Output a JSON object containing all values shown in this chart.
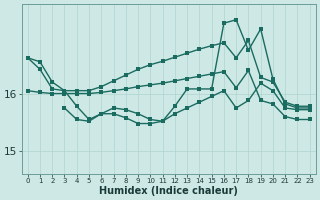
{
  "xlabel": "Humidex (Indice chaleur)",
  "background_color": "#cde8e5",
  "line_color": "#1a6b60",
  "grid_color": "#afd4d0",
  "xlim": [
    -0.5,
    23.5
  ],
  "ylim": [
    14.6,
    17.55
  ],
  "yticks": [
    15,
    16
  ],
  "xticks": [
    0,
    1,
    2,
    3,
    4,
    5,
    6,
    7,
    8,
    9,
    10,
    11,
    12,
    13,
    14,
    15,
    16,
    17,
    18,
    19,
    20,
    21,
    22,
    23
  ],
  "line_upper_smooth_x": [
    0,
    1,
    2,
    3,
    4,
    5,
    6,
    7,
    8,
    9,
    10,
    11,
    12,
    13,
    14,
    15,
    16,
    17,
    18,
    19,
    20,
    21,
    22,
    23
  ],
  "line_upper_smooth_y": [
    16.62,
    16.55,
    16.2,
    16.05,
    16.05,
    16.05,
    16.12,
    16.22,
    16.32,
    16.42,
    16.5,
    16.56,
    16.63,
    16.7,
    16.77,
    16.83,
    16.88,
    16.62,
    16.92,
    16.28,
    16.2,
    15.85,
    15.78,
    15.78
  ],
  "line_lower_smooth_x": [
    0,
    1,
    2,
    3,
    4,
    5,
    6,
    7,
    8,
    9,
    10,
    11,
    12,
    13,
    14,
    15,
    16,
    17,
    18,
    19,
    20,
    21,
    22,
    23
  ],
  "line_lower_smooth_y": [
    16.05,
    16.02,
    16.0,
    16.0,
    16.0,
    16.0,
    16.02,
    16.05,
    16.08,
    16.12,
    16.15,
    16.18,
    16.22,
    16.26,
    16.3,
    16.34,
    16.38,
    16.1,
    16.4,
    15.88,
    15.82,
    15.6,
    15.55,
    15.55
  ],
  "line_upper_jagged_x": [
    0,
    1,
    2,
    3,
    4,
    5,
    6,
    7,
    8,
    9,
    10,
    11,
    12,
    13,
    14,
    15,
    16,
    17,
    18,
    19,
    20,
    21,
    22,
    23
  ],
  "line_upper_jagged_y": [
    16.62,
    16.42,
    16.08,
    16.05,
    15.78,
    15.55,
    15.65,
    15.75,
    15.72,
    15.65,
    15.55,
    15.52,
    15.78,
    16.08,
    16.08,
    16.08,
    17.22,
    17.28,
    16.75,
    17.12,
    16.25,
    15.82,
    15.75,
    15.75
  ],
  "line_lower_jagged_x": [
    3,
    4,
    5,
    6,
    7,
    8,
    9,
    10,
    11,
    12,
    13,
    14,
    15,
    16,
    17,
    18,
    19,
    20,
    21,
    22,
    23
  ],
  "line_lower_jagged_y": [
    15.75,
    15.55,
    15.52,
    15.65,
    15.65,
    15.58,
    15.48,
    15.48,
    15.52,
    15.65,
    15.75,
    15.85,
    15.95,
    16.05,
    15.75,
    15.88,
    16.18,
    16.05,
    15.75,
    15.72,
    15.72
  ]
}
